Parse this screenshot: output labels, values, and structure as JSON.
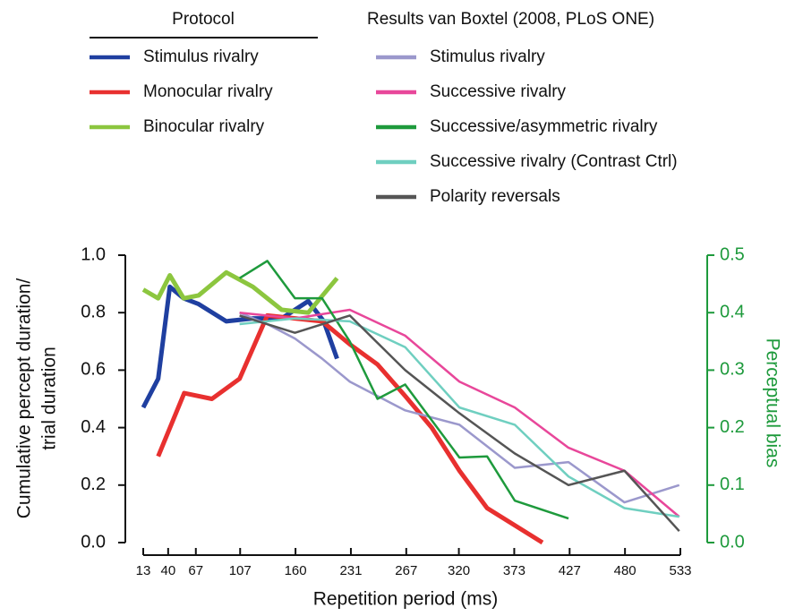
{
  "chart_data": {
    "type": "line",
    "xlabel": "Repetition period (ms)",
    "ylabel": [
      "Cumulative percept duration/",
      "trial duration"
    ],
    "y2label": "Perceptual bias",
    "y2color": "#1e9a3c",
    "xlim": [
      0,
      9.7
    ],
    "xticks": [
      {
        "value": 0,
        "label": "13"
      },
      {
        "value": 0.45,
        "label": "40"
      },
      {
        "value": 0.95,
        "label": "67"
      },
      {
        "value": 1.75,
        "label": "107"
      },
      {
        "value": 2.75,
        "label": "160"
      },
      {
        "value": 3.75,
        "label": "231"
      },
      {
        "value": 4.75,
        "label": "267"
      },
      {
        "value": 5.7,
        "label": "320"
      },
      {
        "value": 6.7,
        "label": "373"
      },
      {
        "value": 7.7,
        "label": "427"
      },
      {
        "value": 8.7,
        "label": "480"
      },
      {
        "value": 9.7,
        "label": "533"
      }
    ],
    "ylim": [
      0,
      1
    ],
    "yticks": [
      {
        "value": 0,
        "label": "0.0"
      },
      0.2,
      0.4,
      0.6,
      0.8,
      {
        "value": 1,
        "label": "1.0"
      }
    ],
    "y2lim": [
      0,
      0.5
    ],
    "y2ticks": [
      {
        "value": 0,
        "label": "0.0"
      },
      0.1,
      0.2,
      0.3,
      0.4,
      0.5
    ],
    "series_groups": [
      {
        "title": "Protocol",
        "series": [
          {
            "name": "Stimulus rivalry",
            "color": "#1f3fa0",
            "line_width": 5,
            "x": [
              0,
              0.27,
              0.48,
              0.73,
              1.0,
              1.5,
              1.98,
              2.5,
              2.74,
              2.98,
              3.26,
              3.5
            ],
            "values": [
              0.47,
              0.57,
              0.89,
              0.85,
              0.83,
              0.77,
              0.78,
              0.78,
              0.81,
              0.84,
              0.77,
              0.64
            ]
          },
          {
            "name": "Monocular rivalry",
            "color": "#e8302f",
            "line_width": 5,
            "x": [
              0.27,
              0.74,
              1.24,
              1.74,
              2.24,
              2.74,
              3.23,
              3.73,
              4.23,
              4.73,
              5.21,
              5.71,
              6.21,
              6.71,
              7.21
            ],
            "values": [
              0.3,
              0.52,
              0.5,
              0.57,
              0.79,
              0.78,
              0.77,
              0.69,
              0.62,
              0.51,
              0.4,
              0.25,
              0.12,
              0.06,
              0.0
            ]
          },
          {
            "name": "Binocular rivalry",
            "color": "#8cc63f",
            "line_width": 5,
            "x": [
              0,
              0.27,
              0.48,
              0.73,
              1.0,
              1.5,
              1.98,
              2.5,
              2.98,
              3.5
            ],
            "values": [
              0.88,
              0.85,
              0.93,
              0.85,
              0.86,
              0.94,
              0.89,
              0.81,
              0.8,
              0.92
            ]
          }
        ]
      },
      {
        "title": "Results van Boxtel (2008, PLoS ONE)",
        "series": [
          {
            "name": "Stimulus rivalry",
            "color": "#9b98cc",
            "line_width": 2.5,
            "x": [
              1.74,
              2.24,
              2.74,
              3.23,
              3.73,
              4.73,
              5.71,
              6.71,
              7.68,
              8.69,
              9.68
            ],
            "values": [
              0.8,
              0.76,
              0.71,
              0.64,
              0.56,
              0.46,
              0.41,
              0.26,
              0.28,
              0.14,
              0.2
            ]
          },
          {
            "name": "Successive rivalry",
            "color": "#e8479a",
            "line_width": 2.5,
            "x": [
              1.74,
              2.74,
              3.73,
              4.73,
              5.71,
              6.71,
              7.68,
              8.69,
              9.68
            ],
            "values": [
              0.8,
              0.78,
              0.81,
              0.72,
              0.56,
              0.47,
              0.33,
              0.25,
              0.09
            ]
          },
          {
            "name": "Successive/asymmetric rivalry",
            "color": "#1e9a3c",
            "line_width": 2.5,
            "axis": "y2",
            "x": [
              1.74,
              2.24,
              2.74,
              3.23,
              3.73,
              4.23,
              4.73,
              5.71,
              6.21,
              6.71,
              7.68
            ],
            "values": [
              0.46,
              0.49,
              0.425,
              0.425,
              0.35,
              0.25,
              0.275,
              0.148,
              0.15,
              0.073,
              0.042
            ]
          },
          {
            "name": "Successive  rivalry (Contrast Ctrl)",
            "color": "#6fcfc0",
            "line_width": 2.5,
            "x": [
              1.74,
              2.74,
              3.73,
              4.73,
              5.71,
              6.71,
              7.68,
              8.69,
              9.68
            ],
            "values": [
              0.76,
              0.78,
              0.77,
              0.68,
              0.47,
              0.41,
              0.23,
              0.12,
              0.09
            ]
          },
          {
            "name": "Polarity reversals",
            "color": "#555555",
            "line_width": 2.5,
            "x": [
              1.74,
              2.74,
              3.73,
              4.73,
              5.71,
              6.71,
              7.68,
              8.69,
              9.68
            ],
            "values": [
              0.79,
              0.73,
              0.79,
              0.6,
              0.45,
              0.31,
              0.2,
              0.25,
              0.04
            ]
          }
        ]
      }
    ]
  }
}
